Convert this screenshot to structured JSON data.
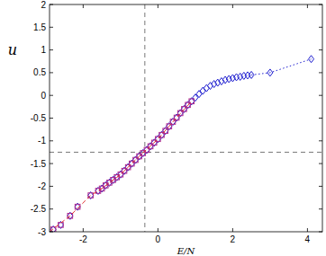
{
  "chart_data": {
    "type": "scatter",
    "x_label": "E/N",
    "y_label": "u",
    "xlim": [
      -2.9,
      4.4
    ],
    "ylim": [
      -3,
      2
    ],
    "xticks": [
      -2,
      0,
      2,
      4
    ],
    "yticks": [
      -3,
      -2.5,
      -2,
      -1.5,
      -1,
      -0.5,
      0,
      0.5,
      1,
      1.5,
      2
    ],
    "grid": false,
    "vlines": [
      -0.35
    ],
    "hlines": [
      -1.25
    ],
    "series": [
      {
        "type": "scatter",
        "marker": "diamond",
        "color": "#1f1fd0",
        "x": [
          -2.8,
          -2.6,
          -2.35,
          -2.15,
          -1.8,
          -1.6,
          -1.5,
          -1.4,
          -1.3,
          -1.2,
          -1.1,
          -1.0,
          -0.9,
          -0.8,
          -0.7,
          -0.6,
          -0.5,
          -0.4,
          -0.3,
          -0.2,
          -0.1,
          0,
          0.1,
          0.2,
          0.3,
          0.4,
          0.5,
          0.6,
          0.7,
          0.8,
          0.9,
          1.0,
          1.1,
          1.2,
          1.3,
          1.4,
          1.5,
          1.6,
          1.7,
          1.8,
          1.9,
          2.0,
          2.1,
          2.2,
          2.3,
          2.4,
          2.5,
          3.0,
          4.1
        ],
        "values": [
          -2.95,
          -2.85,
          -2.65,
          -2.45,
          -2.2,
          -2.1,
          -2.05,
          -1.98,
          -1.92,
          -1.86,
          -1.8,
          -1.74,
          -1.66,
          -1.58,
          -1.5,
          -1.42,
          -1.34,
          -1.27,
          -1.2,
          -1.12,
          -1.04,
          -0.96,
          -0.87,
          -0.78,
          -0.68,
          -0.58,
          -0.49,
          -0.39,
          -0.3,
          -0.21,
          -0.13,
          -0.05,
          0.03,
          0.1,
          0.16,
          0.21,
          0.25,
          0.28,
          0.31,
          0.34,
          0.36,
          0.38,
          0.4,
          0.41,
          0.43,
          0.44,
          0.45,
          0.5,
          0.8
        ]
      },
      {
        "type": "scatter",
        "marker": "square",
        "color": "#b02a8a",
        "x": [
          -2.8,
          -2.6,
          -2.35,
          -2.15,
          -1.8,
          -1.6,
          -1.5,
          -1.4,
          -1.3,
          -1.2,
          -1.1,
          -1.0,
          -0.9,
          -0.8,
          -0.7,
          -0.6,
          -0.5,
          -0.4,
          -0.3,
          -0.2,
          -0.1,
          0,
          0.1,
          0.2,
          0.3,
          0.4,
          0.5,
          0.6,
          0.7,
          0.8,
          0.9
        ],
        "values": [
          -2.95,
          -2.85,
          -2.65,
          -2.45,
          -2.2,
          -2.1,
          -2.05,
          -1.98,
          -1.92,
          -1.86,
          -1.8,
          -1.74,
          -1.66,
          -1.58,
          -1.5,
          -1.42,
          -1.34,
          -1.27,
          -1.2,
          -1.12,
          -1.04,
          -0.96,
          -0.87,
          -0.78,
          -0.68,
          -0.58,
          -0.49,
          -0.39,
          -0.3,
          -0.21,
          -0.13
        ]
      },
      {
        "type": "line",
        "line_style": "dashed",
        "color": "#e03030",
        "x": [
          -2.9,
          -2.35,
          -1.8,
          -1.5,
          -1.0,
          -0.5,
          0,
          0.5,
          0.9
        ],
        "values": [
          -3.0,
          -2.65,
          -2.2,
          -2.05,
          -1.74,
          -1.34,
          -0.96,
          -0.49,
          -0.13
        ]
      },
      {
        "type": "line",
        "line_style": "dotted",
        "color": "#1f1fd0",
        "x": [
          2.5,
          3.0,
          4.1
        ],
        "values": [
          0.45,
          0.5,
          0.8
        ]
      }
    ]
  }
}
